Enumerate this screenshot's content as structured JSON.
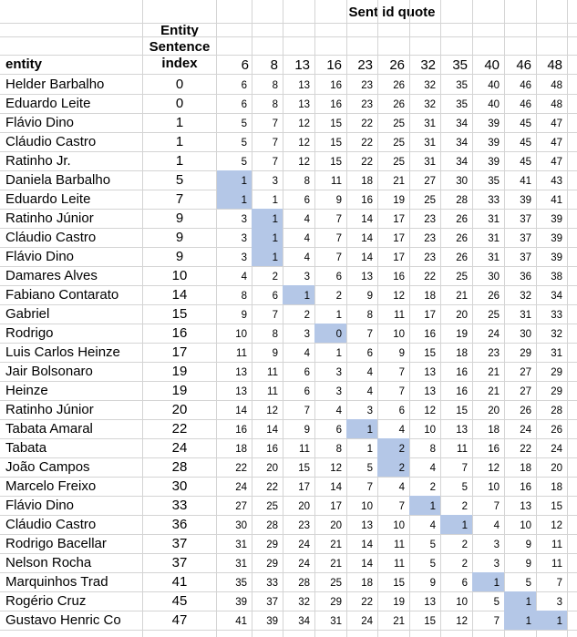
{
  "header": {
    "entity_label": "entity",
    "index_label_lines": [
      "Entity",
      "Sentence",
      "index"
    ],
    "merged_label": "Sent id quote",
    "sent_ids": [
      "6",
      "8",
      "13",
      "16",
      "23",
      "26",
      "32",
      "35",
      "40",
      "46",
      "48"
    ]
  },
  "rows": [
    {
      "entity": "Helder Barbalho",
      "index": "0",
      "values": [
        "6",
        "8",
        "13",
        "16",
        "23",
        "26",
        "32",
        "35",
        "40",
        "46",
        "48"
      ],
      "hl": []
    },
    {
      "entity": "Eduardo Leite",
      "index": "0",
      "values": [
        "6",
        "8",
        "13",
        "16",
        "23",
        "26",
        "32",
        "35",
        "40",
        "46",
        "48"
      ],
      "hl": []
    },
    {
      "entity": "Flávio Dino",
      "index": "1",
      "values": [
        "5",
        "7",
        "12",
        "15",
        "22",
        "25",
        "31",
        "34",
        "39",
        "45",
        "47"
      ],
      "hl": []
    },
    {
      "entity": "Cláudio Castro",
      "index": "1",
      "values": [
        "5",
        "7",
        "12",
        "15",
        "22",
        "25",
        "31",
        "34",
        "39",
        "45",
        "47"
      ],
      "hl": []
    },
    {
      "entity": "Ratinho Jr.",
      "index": "1",
      "values": [
        "5",
        "7",
        "12",
        "15",
        "22",
        "25",
        "31",
        "34",
        "39",
        "45",
        "47"
      ],
      "hl": []
    },
    {
      "entity": "Daniela Barbalho",
      "index": "5",
      "values": [
        "1",
        "3",
        "8",
        "11",
        "18",
        "21",
        "27",
        "30",
        "35",
        "41",
        "43"
      ],
      "hl": [
        0
      ]
    },
    {
      "entity": "Eduardo Leite",
      "index": "7",
      "values": [
        "1",
        "1",
        "6",
        "9",
        "16",
        "19",
        "25",
        "28",
        "33",
        "39",
        "41"
      ],
      "hl": [
        0
      ]
    },
    {
      "entity": "Ratinho Júnior",
      "index": "9",
      "values": [
        "3",
        "1",
        "4",
        "7",
        "14",
        "17",
        "23",
        "26",
        "31",
        "37",
        "39"
      ],
      "hl": [
        1
      ]
    },
    {
      "entity": "Cláudio Castro",
      "index": "9",
      "values": [
        "3",
        "1",
        "4",
        "7",
        "14",
        "17",
        "23",
        "26",
        "31",
        "37",
        "39"
      ],
      "hl": [
        1
      ]
    },
    {
      "entity": "Flávio Dino",
      "index": "9",
      "values": [
        "3",
        "1",
        "4",
        "7",
        "14",
        "17",
        "23",
        "26",
        "31",
        "37",
        "39"
      ],
      "hl": [
        1
      ]
    },
    {
      "entity": "Damares Alves",
      "index": "10",
      "values": [
        "4",
        "2",
        "3",
        "6",
        "13",
        "16",
        "22",
        "25",
        "30",
        "36",
        "38"
      ],
      "hl": []
    },
    {
      "entity": "Fabiano Contarato",
      "index": "14",
      "values": [
        "8",
        "6",
        "1",
        "2",
        "9",
        "12",
        "18",
        "21",
        "26",
        "32",
        "34"
      ],
      "hl": [
        2
      ]
    },
    {
      "entity": "Gabriel",
      "index": "15",
      "values": [
        "9",
        "7",
        "2",
        "1",
        "8",
        "11",
        "17",
        "20",
        "25",
        "31",
        "33"
      ],
      "hl": []
    },
    {
      "entity": "Rodrigo",
      "index": "16",
      "values": [
        "10",
        "8",
        "3",
        "0",
        "7",
        "10",
        "16",
        "19",
        "24",
        "30",
        "32"
      ],
      "hl": [
        3
      ]
    },
    {
      "entity": "Luis Carlos Heinze",
      "index": "17",
      "values": [
        "11",
        "9",
        "4",
        "1",
        "6",
        "9",
        "15",
        "18",
        "23",
        "29",
        "31"
      ],
      "hl": []
    },
    {
      "entity": "Jair Bolsonaro",
      "index": "19",
      "values": [
        "13",
        "11",
        "6",
        "3",
        "4",
        "7",
        "13",
        "16",
        "21",
        "27",
        "29"
      ],
      "hl": []
    },
    {
      "entity": "Heinze",
      "index": "19",
      "values": [
        "13",
        "11",
        "6",
        "3",
        "4",
        "7",
        "13",
        "16",
        "21",
        "27",
        "29"
      ],
      "hl": []
    },
    {
      "entity": "Ratinho Júnior",
      "index": "20",
      "values": [
        "14",
        "12",
        "7",
        "4",
        "3",
        "6",
        "12",
        "15",
        "20",
        "26",
        "28"
      ],
      "hl": []
    },
    {
      "entity": "Tabata Amaral",
      "index": "22",
      "values": [
        "16",
        "14",
        "9",
        "6",
        "1",
        "4",
        "10",
        "13",
        "18",
        "24",
        "26"
      ],
      "hl": [
        4
      ]
    },
    {
      "entity": "Tabata",
      "index": "24",
      "values": [
        "18",
        "16",
        "11",
        "8",
        "1",
        "2",
        "8",
        "11",
        "16",
        "22",
        "24"
      ],
      "hl": [
        5
      ]
    },
    {
      "entity": "João Campos",
      "index": "28",
      "values": [
        "22",
        "20",
        "15",
        "12",
        "5",
        "2",
        "4",
        "7",
        "12",
        "18",
        "20"
      ],
      "hl": [
        5
      ]
    },
    {
      "entity": "Marcelo Freixo",
      "index": "30",
      "values": [
        "24",
        "22",
        "17",
        "14",
        "7",
        "4",
        "2",
        "5",
        "10",
        "16",
        "18"
      ],
      "hl": []
    },
    {
      "entity": "Flávio Dino",
      "index": "33",
      "values": [
        "27",
        "25",
        "20",
        "17",
        "10",
        "7",
        "1",
        "2",
        "7",
        "13",
        "15"
      ],
      "hl": [
        6
      ]
    },
    {
      "entity": "Cláudio Castro",
      "index": "36",
      "values": [
        "30",
        "28",
        "23",
        "20",
        "13",
        "10",
        "4",
        "1",
        "4",
        "10",
        "12"
      ],
      "hl": [
        7
      ]
    },
    {
      "entity": "Rodrigo Bacellar",
      "index": "37",
      "values": [
        "31",
        "29",
        "24",
        "21",
        "14",
        "11",
        "5",
        "2",
        "3",
        "9",
        "11"
      ],
      "hl": []
    },
    {
      "entity": "Nelson Rocha",
      "index": "37",
      "values": [
        "31",
        "29",
        "24",
        "21",
        "14",
        "11",
        "5",
        "2",
        "3",
        "9",
        "11"
      ],
      "hl": []
    },
    {
      "entity": "Marquinhos Trad",
      "index": "41",
      "values": [
        "35",
        "33",
        "28",
        "25",
        "18",
        "15",
        "9",
        "6",
        "1",
        "5",
        "7"
      ],
      "hl": [
        8
      ]
    },
    {
      "entity": "Rogério Cruz",
      "index": "45",
      "values": [
        "39",
        "37",
        "32",
        "29",
        "22",
        "19",
        "13",
        "10",
        "5",
        "1",
        "3"
      ],
      "hl": [
        9
      ]
    },
    {
      "entity": "Gustavo Henric Co",
      "index": "47",
      "values": [
        "41",
        "39",
        "34",
        "31",
        "24",
        "21",
        "15",
        "12",
        "7",
        "1",
        "1"
      ],
      "hl": [
        9,
        10
      ]
    }
  ],
  "colors": {
    "highlight": "#b4c7e7",
    "grid": "#d4d4d4"
  }
}
